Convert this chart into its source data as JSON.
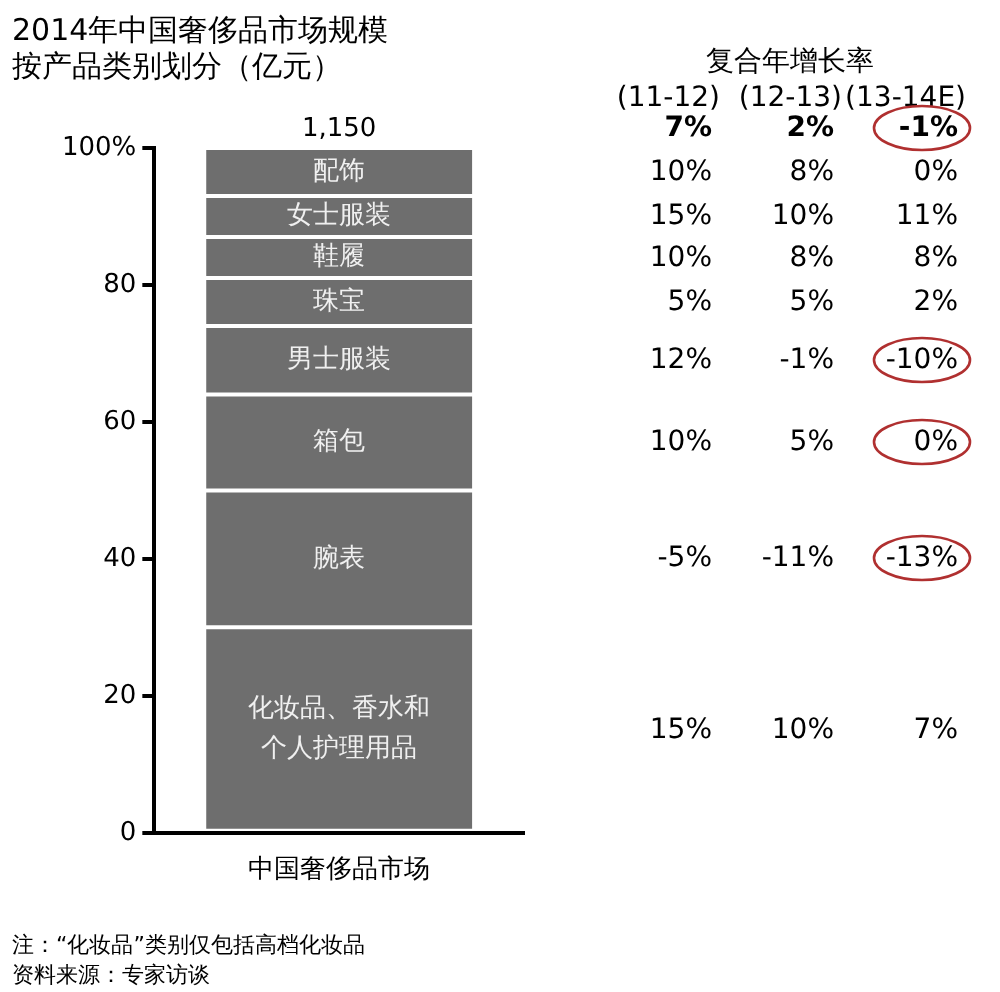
{
  "chart_data": {
    "type": "bar",
    "title": "2014年中国奢侈品市场规模",
    "subtitle": "按产品类别划分（亿元）",
    "categories": [
      "中国奢侈品市场"
    ],
    "stacked": true,
    "ylim": [
      0,
      100
    ],
    "yticks": [
      0,
      20,
      40,
      60,
      80,
      {
        "value": 100,
        "label": "100%"
      }
    ],
    "grid": false,
    "legend": false,
    "series": [
      {
        "name": "化妆品、香水和个人护理用品",
        "color": "#6e6e6e",
        "values": [
          30
        ]
      },
      {
        "name": "腕表",
        "color": "#6e6e6e",
        "values": [
          20
        ]
      },
      {
        "name": "箱包",
        "color": "#6e6e6e",
        "values": [
          14
        ]
      },
      {
        "name": "男士服装",
        "color": "#6e6e6e",
        "values": [
          10
        ]
      },
      {
        "name": "珠宝",
        "color": "#6e6e6e",
        "values": [
          7
        ]
      },
      {
        "name": "鞋履",
        "color": "#6e6e6e",
        "values": [
          6
        ]
      },
      {
        "name": "女士服装",
        "color": "#6e6e6e",
        "values": [
          6
        ]
      },
      {
        "name": "配饰",
        "color": "#6e6e6e",
        "values": [
          7
        ]
      }
    ],
    "annotations": [
      "复合年增长率",
      "(11-12)",
      "(12-13)",
      "(13-14E)",
      "7%",
      "2%",
      "-1%",
      "10%",
      "8%",
      "0%",
      "15%",
      "10%",
      "11%",
      "10%",
      "8%",
      "8%",
      "5%",
      "5%",
      "2%",
      "12%",
      "-1%",
      "-10%",
      "10%",
      "5%",
      "0%",
      "-5%",
      "-11%",
      "-13%",
      "15%",
      "10%",
      "7%",
      "注：“化妆品”类别仅包括高档化妆品",
      "资料来源：专家访谈",
      {
        "text": "1,150",
        "x": "中国奢侈品市场",
        "y": 100
      }
    ]
  }
}
